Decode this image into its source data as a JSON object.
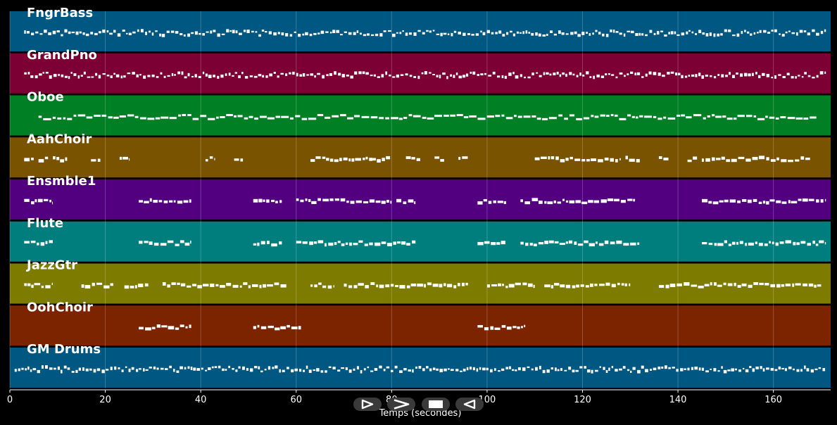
{
  "chart_data": {
    "type": "piano-roll",
    "xlabel": "Temps (secondes)",
    "x_ticks": [
      0,
      20,
      40,
      60,
      80,
      100,
      120,
      140,
      160
    ],
    "xlim": [
      0,
      172
    ],
    "grid": true,
    "tracks": [
      {
        "name": "FngrBass",
        "color": "#005782",
        "segments": [
          [
            3,
            171,
            "dense"
          ]
        ]
      },
      {
        "name": "GrandPno",
        "color": "#7c0034",
        "segments": [
          [
            3,
            171,
            "dense"
          ]
        ]
      },
      {
        "name": "Oboe",
        "color": "#007f24",
        "segments": [
          [
            6,
            169,
            "melody"
          ]
        ]
      },
      {
        "name": "AahChoir",
        "color": "#7a5300",
        "segments": [
          [
            3,
            5
          ],
          [
            6,
            8
          ],
          [
            9,
            12
          ],
          [
            17,
            19
          ],
          [
            23,
            25
          ],
          [
            41,
            43
          ],
          [
            47,
            49
          ],
          [
            63,
            76
          ],
          [
            76,
            80
          ],
          [
            83,
            86
          ],
          [
            89,
            91
          ],
          [
            94,
            96
          ],
          [
            110,
            128
          ],
          [
            129,
            132
          ],
          [
            136,
            138
          ],
          [
            142,
            144
          ],
          [
            145,
            168
          ]
        ]
      },
      {
        "name": "Ensmble1",
        "color": "#530080",
        "segments": [
          [
            3,
            9
          ],
          [
            27,
            38
          ],
          [
            51,
            57
          ],
          [
            60,
            80
          ],
          [
            81,
            85
          ],
          [
            98,
            104
          ],
          [
            107,
            131
          ],
          [
            145,
            171
          ]
        ]
      },
      {
        "name": "Flute",
        "color": "#007e7e",
        "segments": [
          [
            3,
            9
          ],
          [
            27,
            38
          ],
          [
            51,
            57
          ],
          [
            60,
            85
          ],
          [
            98,
            104
          ],
          [
            107,
            132
          ],
          [
            145,
            171
          ]
        ]
      },
      {
        "name": "JazzGtr",
        "color": "#7d7c00",
        "segments": [
          [
            3,
            9
          ],
          [
            15,
            22
          ],
          [
            24,
            29
          ],
          [
            32,
            58
          ],
          [
            63,
            68
          ],
          [
            70,
            96
          ],
          [
            100,
            110
          ],
          [
            112,
            130
          ],
          [
            136,
            170
          ]
        ]
      },
      {
        "name": "OohChoir",
        "color": "#7c2300",
        "segments": [
          [
            27,
            38
          ],
          [
            51,
            61
          ],
          [
            98,
            108
          ]
        ]
      },
      {
        "name": "GM Drums",
        "color": "#005782",
        "segments": [
          [
            1,
            171,
            "dense"
          ]
        ]
      }
    ]
  },
  "controls": {
    "play_icon": "play-outline-icon",
    "next_icon": "chevron-right-icon",
    "stop_icon": "stop-icon",
    "rewind_icon": "rewind-outline-icon"
  }
}
